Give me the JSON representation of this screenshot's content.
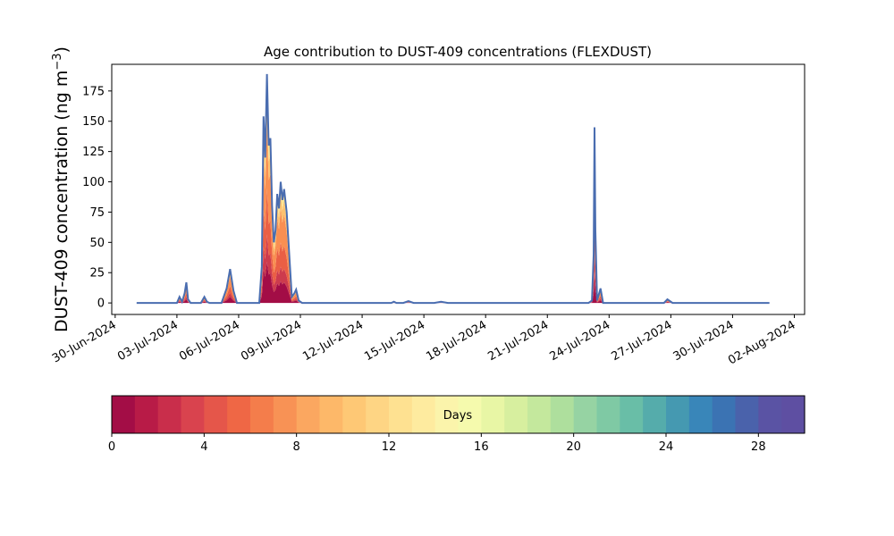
{
  "chart_data": {
    "type": "area",
    "title": "Age contribution to DUST-409 concentrations (FLEXDUST)",
    "ylabel": "DUST-409 concentration (ng m",
    "ylabel_unit_sup": "−3",
    "ylabel_close": ")",
    "xlabel": "",
    "ylim": [
      -9.5,
      197
    ],
    "yticks": [
      0,
      25,
      50,
      75,
      100,
      125,
      150,
      175
    ],
    "xlim": [
      "2024-06-29T20:00",
      "2024-08-02T12:00"
    ],
    "xticks": [
      "2024-06-30",
      "2024-07-03",
      "2024-07-06",
      "2024-07-09",
      "2024-07-12",
      "2024-07-15",
      "2024-07-18",
      "2024-07-21",
      "2024-07-24",
      "2024-07-27",
      "2024-07-30",
      "2024-08-02"
    ],
    "xtick_labels": [
      "30-Jun-2024",
      "03-Jul-2024",
      "06-Jul-2024",
      "09-Jul-2024",
      "12-Jul-2024",
      "15-Jul-2024",
      "18-Jul-2024",
      "21-Jul-2024",
      "24-Jul-2024",
      "27-Jul-2024",
      "30-Jul-2024",
      "02-Aug-2024"
    ],
    "grid": false,
    "total_series": {
      "color": "#4a6db0",
      "points": [
        [
          "2024-07-01T01:00",
          0
        ],
        [
          "2024-07-03T00:00",
          0
        ],
        [
          "2024-07-03T03:00",
          5
        ],
        [
          "2024-07-03T06:00",
          1
        ],
        [
          "2024-07-03T09:00",
          8
        ],
        [
          "2024-07-03T11:00",
          17
        ],
        [
          "2024-07-03T13:00",
          3
        ],
        [
          "2024-07-03T16:00",
          0
        ],
        [
          "2024-07-04T04:00",
          0
        ],
        [
          "2024-07-04T08:00",
          5
        ],
        [
          "2024-07-04T11:00",
          1
        ],
        [
          "2024-07-04T14:00",
          0
        ],
        [
          "2024-07-05T04:00",
          0
        ],
        [
          "2024-07-05T10:00",
          12
        ],
        [
          "2024-07-05T14:00",
          28
        ],
        [
          "2024-07-05T18:00",
          10
        ],
        [
          "2024-07-05T22:00",
          0
        ],
        [
          "2024-07-07T00:00",
          0
        ],
        [
          "2024-07-07T03:00",
          30
        ],
        [
          "2024-07-07T05:00",
          154
        ],
        [
          "2024-07-07T07:00",
          120
        ],
        [
          "2024-07-07T09:00",
          189
        ],
        [
          "2024-07-07T11:00",
          130
        ],
        [
          "2024-07-07T13:00",
          136
        ],
        [
          "2024-07-07T15:00",
          80
        ],
        [
          "2024-07-07T17:00",
          50
        ],
        [
          "2024-07-07T19:00",
          60
        ],
        [
          "2024-07-07T21:00",
          90
        ],
        [
          "2024-07-07T23:00",
          78
        ],
        [
          "2024-07-08T01:00",
          100
        ],
        [
          "2024-07-08T03:00",
          85
        ],
        [
          "2024-07-08T05:00",
          94
        ],
        [
          "2024-07-08T08:00",
          75
        ],
        [
          "2024-07-08T11:00",
          40
        ],
        [
          "2024-07-08T14:00",
          5
        ],
        [
          "2024-07-08T17:00",
          8
        ],
        [
          "2024-07-08T19:00",
          11
        ],
        [
          "2024-07-08T22:00",
          2
        ],
        [
          "2024-07-09T02:00",
          0
        ],
        [
          "2024-07-13T10:00",
          0
        ],
        [
          "2024-07-13T13:00",
          1
        ],
        [
          "2024-07-13T16:00",
          0
        ],
        [
          "2024-07-14T00:00",
          0
        ],
        [
          "2024-07-14T06:00",
          1.5
        ],
        [
          "2024-07-14T12:00",
          0
        ],
        [
          "2024-07-15T12:00",
          0
        ],
        [
          "2024-07-15T20:00",
          1
        ],
        [
          "2024-07-16T04:00",
          0
        ],
        [
          "2024-07-23T00:00",
          0
        ],
        [
          "2024-07-23T04:00",
          2
        ],
        [
          "2024-07-23T06:00",
          40
        ],
        [
          "2024-07-23T07:00",
          145
        ],
        [
          "2024-07-23T08:00",
          60
        ],
        [
          "2024-07-23T10:00",
          2
        ],
        [
          "2024-07-23T14:00",
          12
        ],
        [
          "2024-07-23T17:00",
          0
        ],
        [
          "2024-07-26T16:00",
          0
        ],
        [
          "2024-07-26T20:00",
          3
        ],
        [
          "2024-07-27T02:00",
          0
        ],
        [
          "2024-07-31T19:00",
          0
        ]
      ]
    },
    "age_layers": [
      {
        "age_days": "0-1",
        "color": "#a30d46",
        "fraction": 0.18
      },
      {
        "age_days": "1-3",
        "color": "#cd3b4d",
        "fraction": 0.12
      },
      {
        "age_days": "3-5",
        "color": "#ea5f45",
        "fraction": 0.2
      },
      {
        "age_days": "5-8",
        "color": "#f98f52",
        "fraction": 0.28
      },
      {
        "age_days": "8-12",
        "color": "#fdc16e",
        "fraction": 0.12
      },
      {
        "age_days": "12-30",
        "color": "#fee692",
        "fraction": 0.1
      }
    ],
    "colorbar": {
      "label": "Days",
      "range": [
        0,
        30
      ],
      "ticks": [
        0,
        4,
        8,
        12,
        16,
        20,
        24,
        28
      ],
      "colors": [
        "#a30d46",
        "#b81b47",
        "#c92e4b",
        "#d9434e",
        "#e5564a",
        "#ef6745",
        "#f47d4b",
        "#f89255",
        "#fba760",
        "#fdb869",
        "#fec875",
        "#fed584",
        "#fee191",
        "#feeb9f",
        "#fbf4ab",
        "#f5faad",
        "#e8f6a5",
        "#d7ef9f",
        "#c4e89d",
        "#aedf9d",
        "#96d3a3",
        "#7fc9a4",
        "#69bea7",
        "#55acab",
        "#4599b1",
        "#3986b9",
        "#3b73b3",
        "#4a62ab",
        "#5a53a4",
        "#5e4fa2"
      ]
    }
  }
}
